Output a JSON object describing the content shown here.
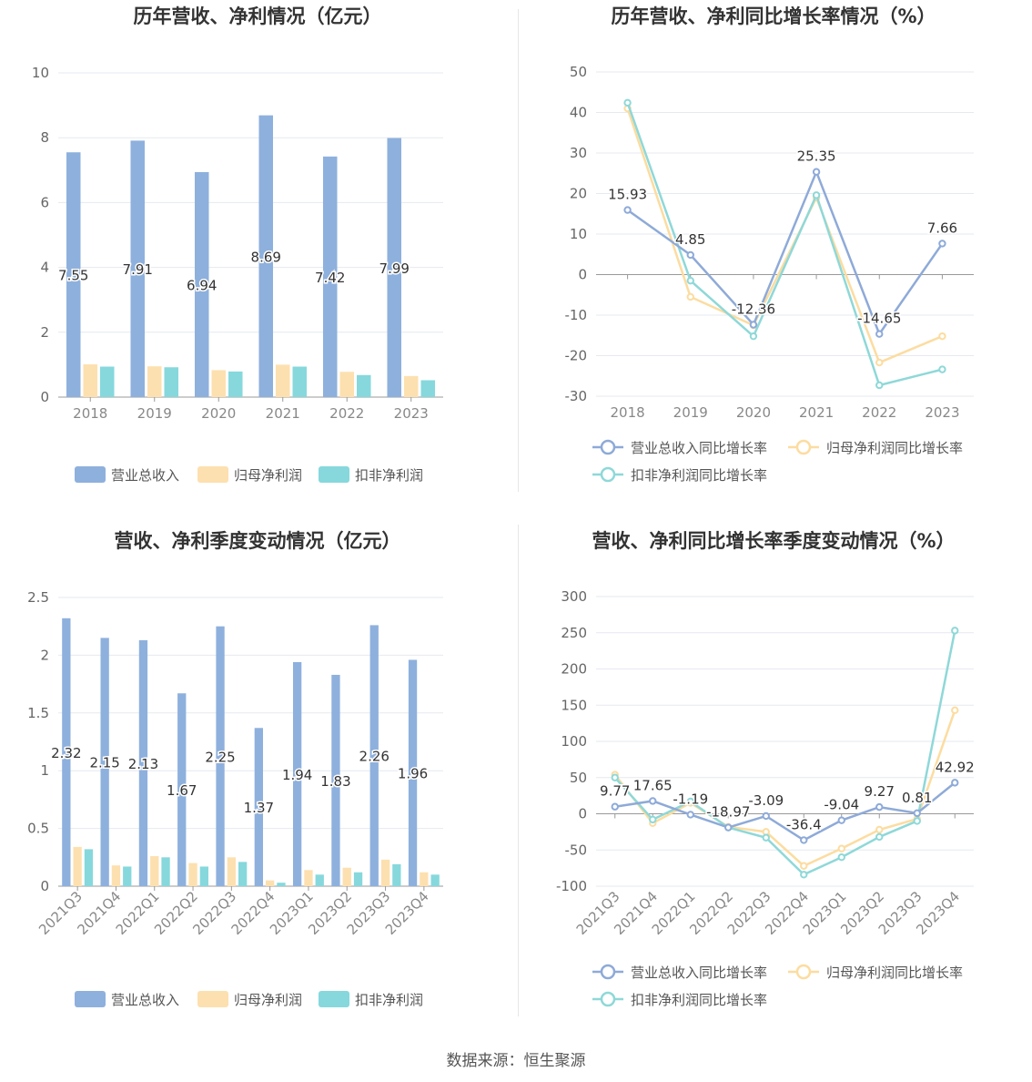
{
  "charts": [
    {
      "type": "bar",
      "title": "历年营收、净利情况（亿元）",
      "categories": [
        "2018",
        "2019",
        "2020",
        "2021",
        "2022",
        "2023"
      ],
      "series": [
        {
          "name": "营业总收入",
          "values": [
            7.55,
            7.91,
            6.94,
            8.69,
            7.42,
            7.99
          ],
          "color": "#8eb0dd",
          "show_labels": true
        },
        {
          "name": "归母净利润",
          "values": [
            1.01,
            0.95,
            0.83,
            1.0,
            0.78,
            0.65
          ],
          "color": "#fde0b0",
          "show_labels": false
        },
        {
          "name": "扣非净利润",
          "values": [
            0.94,
            0.92,
            0.79,
            0.94,
            0.68,
            0.52
          ],
          "color": "#86d8dc",
          "show_labels": false
        }
      ],
      "ylim": [
        0,
        10
      ],
      "yticks": [
        0,
        2,
        4,
        6,
        8,
        10
      ],
      "legend": "bottom"
    },
    {
      "type": "line",
      "title": "历年营收、净利同比增长率情况（%）",
      "categories": [
        "2018",
        "2019",
        "2020",
        "2021",
        "2022",
        "2023"
      ],
      "series": [
        {
          "name": "营业总收入同比增长率",
          "values": [
            15.93,
            4.85,
            -12.36,
            25.35,
            -14.65,
            7.66
          ],
          "color": "#8eaad8",
          "show_labels": true
        },
        {
          "name": "归母净利润同比增长率",
          "values": [
            41.0,
            -5.5,
            -12.5,
            19.0,
            -21.7,
            -15.2
          ],
          "color": "#fcdca0",
          "show_labels": false
        },
        {
          "name": "扣非净利润同比增长率",
          "values": [
            42.4,
            -1.5,
            -15.2,
            19.6,
            -27.3,
            -23.4
          ],
          "color": "#8fd8d8",
          "show_labels": false
        }
      ],
      "ylim": [
        -30,
        50
      ],
      "yticks": [
        -30,
        -20,
        -10,
        0,
        10,
        20,
        30,
        40,
        50
      ],
      "legend": "bottom"
    },
    {
      "type": "bar",
      "title": "营收、净利季度变动情况（亿元）",
      "categories": [
        "2021Q3",
        "2021Q4",
        "2022Q1",
        "2022Q2",
        "2022Q3",
        "2022Q4",
        "2023Q1",
        "2023Q2",
        "2023Q3",
        "2023Q4"
      ],
      "series": [
        {
          "name": "营业总收入",
          "values": [
            2.32,
            2.15,
            2.13,
            1.67,
            2.25,
            1.37,
            1.94,
            1.83,
            2.26,
            1.96
          ],
          "color": "#8eb0dd",
          "show_labels": true
        },
        {
          "name": "归母净利润",
          "values": [
            0.34,
            0.18,
            0.26,
            0.2,
            0.25,
            0.05,
            0.14,
            0.16,
            0.23,
            0.12
          ],
          "color": "#fde0b0",
          "show_labels": false
        },
        {
          "name": "扣非净利润",
          "values": [
            0.32,
            0.17,
            0.25,
            0.17,
            0.21,
            0.03,
            0.1,
            0.12,
            0.19,
            0.1
          ],
          "color": "#86d8dc",
          "show_labels": false
        }
      ],
      "ylim": [
        0,
        2.5
      ],
      "yticks": [
        0,
        0.5,
        1,
        1.5,
        2,
        2.5
      ],
      "legend": "bottom"
    },
    {
      "type": "line",
      "title": "营收、净利同比增长率季度变动情况（%）",
      "categories": [
        "2021Q3",
        "2021Q4",
        "2022Q1",
        "2022Q2",
        "2022Q3",
        "2022Q4",
        "2023Q1",
        "2023Q2",
        "2023Q3",
        "2023Q4"
      ],
      "series": [
        {
          "name": "营业总收入同比增长率",
          "values": [
            9.77,
            17.65,
            -1.19,
            -18.97,
            -3.09,
            -36.4,
            -9.04,
            9.27,
            0.81,
            42.92
          ],
          "color": "#8eaad8",
          "show_labels": true
        },
        {
          "name": "归母净利润同比增长率",
          "values": [
            54,
            -13,
            15,
            -18,
            -25,
            -72,
            -48,
            -22,
            -7,
            143
          ],
          "color": "#fcdca0",
          "show_labels": false
        },
        {
          "name": "扣非净利润同比增长率",
          "values": [
            50,
            -8,
            17,
            -19,
            -33,
            -84,
            -60,
            -32,
            -10,
            253
          ],
          "color": "#8fd8d8",
          "show_labels": false
        }
      ],
      "ylim": [
        -100,
        300
      ],
      "yticks": [
        -100,
        -50,
        0,
        50,
        100,
        150,
        200,
        250,
        300
      ],
      "legend": "bottom"
    }
  ],
  "source_text": "数据来源：恒生聚源"
}
